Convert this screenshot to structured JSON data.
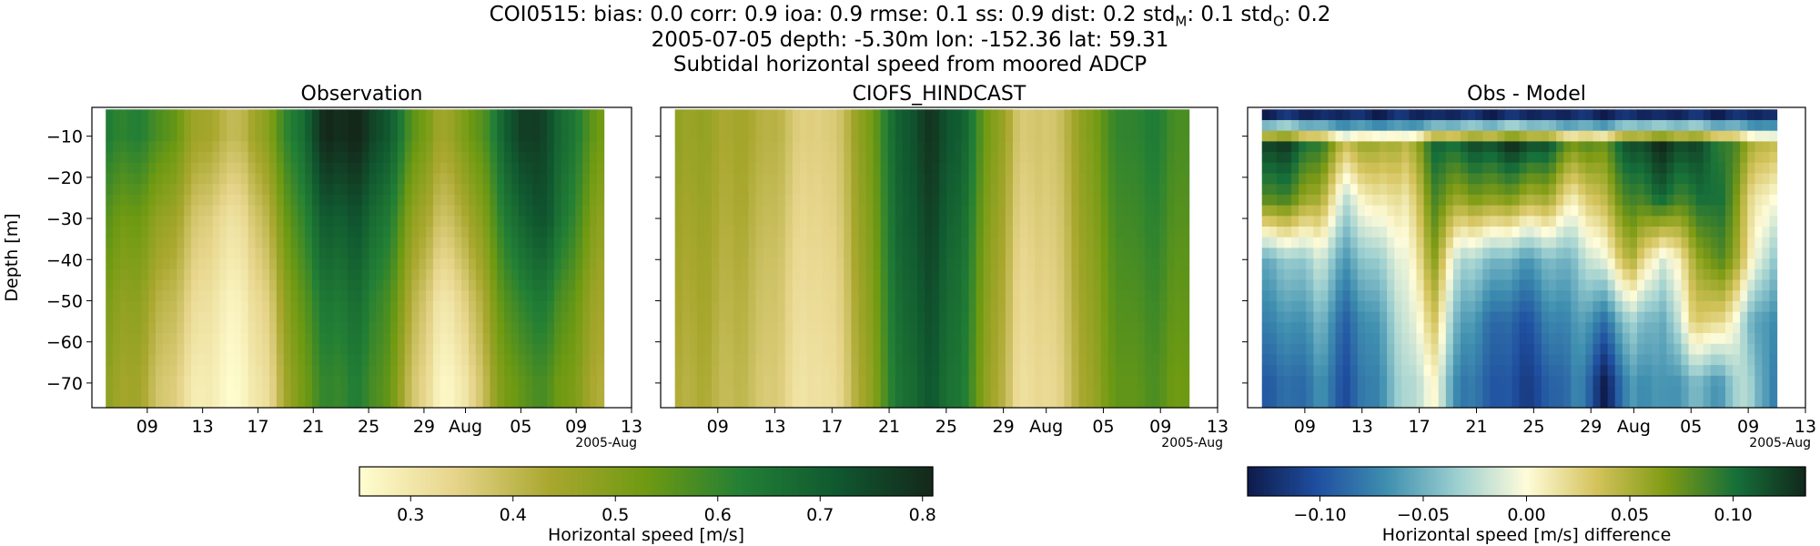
{
  "header": {
    "title_parts": [
      {
        "t": "COI0515: bias: 0.0  corr: 0.9  ioa: 0.9  rmse: 0.1  ss: 0.9  dist: 0.2  std"
      },
      {
        "t": "M",
        "sub": true
      },
      {
        "t": ": 0.1  std"
      },
      {
        "t": "O",
        "sub": true
      },
      {
        "t": ": 0.2"
      }
    ],
    "line2": "2005-07-05 depth: -5.30m lon: -152.36 lat: 59.31",
    "line3": "Subtidal horizontal speed from moored ADCP"
  },
  "chart_data": [
    {
      "type": "heatmap",
      "title": "Observation",
      "ylabel": "Depth [m]",
      "x_start": "2005-07-06",
      "x_end": "2005-08-11",
      "xlim": [
        "2005-07-05",
        "2005-08-13"
      ],
      "xticks": [
        "09",
        "13",
        "17",
        "21",
        "25",
        "29",
        "Aug",
        "05",
        "09",
        "13"
      ],
      "x_offset_label": "2005-Aug",
      "ylim": [
        -76,
        -3
      ],
      "yticks": [
        -10,
        -20,
        -30,
        -40,
        -50,
        -60,
        -70
      ],
      "depth_top": -3.5,
      "depth_bottom": -76,
      "colormap": "speed",
      "clim": [
        0.25,
        0.81
      ],
      "approx_values": {
        "dates": [
          "07-06",
          "07-08",
          "07-10",
          "07-12",
          "07-14",
          "07-16",
          "07-18",
          "07-20",
          "07-22",
          "07-24",
          "07-26",
          "07-28",
          "07-30",
          "08-01",
          "08-03",
          "08-05",
          "08-07",
          "08-09",
          "08-11"
        ],
        "depths": [
          -10,
          -30,
          -50,
          -70
        ],
        "values": [
          [
            0.62,
            0.62,
            0.58,
            0.48,
            0.42,
            0.4,
            0.52,
            0.66,
            0.81,
            0.81,
            0.74,
            0.58,
            0.45,
            0.5,
            0.62,
            0.78,
            0.74,
            0.62,
            0.52
          ],
          [
            0.55,
            0.53,
            0.48,
            0.4,
            0.33,
            0.32,
            0.44,
            0.6,
            0.71,
            0.72,
            0.66,
            0.5,
            0.38,
            0.42,
            0.56,
            0.7,
            0.72,
            0.58,
            0.47
          ],
          [
            0.5,
            0.48,
            0.42,
            0.35,
            0.29,
            0.28,
            0.38,
            0.55,
            0.64,
            0.66,
            0.6,
            0.44,
            0.3,
            0.34,
            0.5,
            0.62,
            0.63,
            0.52,
            0.44
          ],
          [
            0.47,
            0.45,
            0.38,
            0.31,
            0.27,
            0.26,
            0.35,
            0.52,
            0.6,
            0.62,
            0.57,
            0.4,
            0.27,
            0.29,
            0.46,
            0.56,
            0.57,
            0.49,
            0.42
          ]
        ]
      }
    },
    {
      "type": "heatmap",
      "title": "CIOFS_HINDCAST",
      "x_start": "2005-07-06",
      "x_end": "2005-08-11",
      "xlim": [
        "2005-07-05",
        "2005-08-13"
      ],
      "xticks": [
        "09",
        "13",
        "17",
        "21",
        "25",
        "29",
        "Aug",
        "05",
        "09",
        "13"
      ],
      "x_offset_label": "2005-Aug",
      "ylim": [
        -76,
        -3
      ],
      "yticks": [
        -10,
        -20,
        -30,
        -40,
        -50,
        -60,
        -70
      ],
      "depth_top": -3.5,
      "depth_bottom": -76,
      "colormap": "speed",
      "clim": [
        0.25,
        0.81
      ],
      "approx_values": {
        "dates": [
          "07-06",
          "07-08",
          "07-10",
          "07-12",
          "07-14",
          "07-16",
          "07-18",
          "07-20",
          "07-22",
          "07-24",
          "07-26",
          "07-28",
          "07-30",
          "08-01",
          "08-03",
          "08-05",
          "08-07",
          "08-09",
          "08-11"
        ],
        "depths": [
          -10,
          -40,
          -70
        ],
        "values": [
          [
            0.48,
            0.46,
            0.44,
            0.43,
            0.38,
            0.34,
            0.4,
            0.55,
            0.72,
            0.78,
            0.7,
            0.52,
            0.38,
            0.36,
            0.44,
            0.56,
            0.62,
            0.62,
            0.56
          ],
          [
            0.45,
            0.44,
            0.42,
            0.4,
            0.35,
            0.32,
            0.38,
            0.53,
            0.7,
            0.74,
            0.66,
            0.49,
            0.35,
            0.34,
            0.42,
            0.53,
            0.59,
            0.59,
            0.54
          ],
          [
            0.43,
            0.42,
            0.4,
            0.38,
            0.33,
            0.3,
            0.36,
            0.51,
            0.67,
            0.71,
            0.64,
            0.47,
            0.33,
            0.32,
            0.4,
            0.51,
            0.56,
            0.56,
            0.52
          ]
        ]
      }
    },
    {
      "type": "heatmap",
      "title": "Obs - Model",
      "x_start": "2005-07-06",
      "x_end": "2005-08-11",
      "xlim": [
        "2005-07-05",
        "2005-08-13"
      ],
      "xticks": [
        "09",
        "13",
        "17",
        "21",
        "25",
        "29",
        "Aug",
        "05",
        "09",
        "13"
      ],
      "x_offset_label": "2005-Aug",
      "ylim": [
        -76,
        -3
      ],
      "yticks": [
        -10,
        -20,
        -30,
        -40,
        -50,
        -60,
        -70
      ],
      "depth_top": -3.5,
      "depth_bottom": -76,
      "colormap": "difference",
      "clim": [
        -0.135,
        0.135
      ],
      "approx_values": {
        "dates": [
          "07-06",
          "07-08",
          "07-10",
          "07-12",
          "07-14",
          "07-16",
          "07-18",
          "07-20",
          "07-22",
          "07-24",
          "07-26",
          "07-28",
          "07-30",
          "08-01",
          "08-03",
          "08-05",
          "08-07",
          "08-09",
          "08-11"
        ],
        "depths": [
          -5,
          -12,
          -25,
          -40,
          -55,
          -70
        ],
        "values": [
          [
            -0.13,
            -0.12,
            -0.13,
            -0.12,
            -0.13,
            -0.12,
            -0.13,
            -0.12,
            -0.13,
            -0.12,
            -0.13,
            -0.12,
            -0.13,
            -0.12,
            -0.13,
            -0.12,
            -0.13,
            -0.12,
            -0.13
          ],
          [
            0.13,
            0.12,
            0.09,
            0.04,
            0.06,
            0.04,
            0.1,
            0.11,
            0.12,
            0.13,
            0.11,
            0.07,
            0.08,
            0.12,
            0.13,
            0.12,
            0.1,
            0.06,
            0.03
          ],
          [
            0.09,
            0.08,
            0.05,
            -0.02,
            0.02,
            0.01,
            0.08,
            0.06,
            0.07,
            0.06,
            0.05,
            0.01,
            0.05,
            0.09,
            0.1,
            0.09,
            0.11,
            0.03,
            -0.01
          ],
          [
            -0.05,
            -0.04,
            -0.02,
            -0.06,
            -0.03,
            -0.01,
            0.06,
            -0.03,
            -0.04,
            -0.06,
            -0.05,
            -0.04,
            0.0,
            0.05,
            -0.02,
            0.04,
            0.09,
            0.02,
            -0.05
          ],
          [
            -0.07,
            -0.07,
            -0.05,
            -0.09,
            -0.06,
            -0.02,
            0.03,
            -0.06,
            -0.08,
            -0.1,
            -0.08,
            -0.06,
            -0.08,
            -0.03,
            -0.06,
            0.02,
            0.03,
            -0.04,
            -0.08
          ],
          [
            -0.09,
            -0.09,
            -0.07,
            -0.1,
            -0.07,
            -0.03,
            0.0,
            -0.08,
            -0.09,
            -0.11,
            -0.1,
            -0.07,
            -0.13,
            -0.06,
            -0.07,
            -0.05,
            -0.06,
            -0.02,
            -0.09
          ]
        ]
      }
    }
  ],
  "colorbars": [
    {
      "label": "Horizontal speed [m/s]",
      "colormap": "speed",
      "clim": [
        0.25,
        0.81
      ],
      "ticks": [
        0.3,
        0.4,
        0.5,
        0.6,
        0.7,
        0.8
      ],
      "tick_labels": [
        "0.3",
        "0.4",
        "0.5",
        "0.6",
        "0.7",
        "0.8"
      ]
    },
    {
      "label": "Horizontal speed [m/s] difference",
      "colormap": "difference",
      "clim": [
        -0.135,
        0.135
      ],
      "ticks": [
        -0.1,
        -0.05,
        0,
        0.05,
        0.1
      ],
      "tick_labels": [
        "−0.10",
        "−0.05",
        "0.00",
        "0.05",
        "0.10"
      ]
    }
  ],
  "colormaps": {
    "speed": [
      "#fffdd0",
      "#e6d48a",
      "#a9a72e",
      "#6f9a12",
      "#227f35",
      "#105830",
      "#14281a"
    ],
    "difference": [
      "#0e1b4b",
      "#1f4fa0",
      "#3f8fb0",
      "#9ccfd0",
      "#fffcda",
      "#d4c35b",
      "#7f9b14",
      "#16703a",
      "#11281b"
    ]
  }
}
